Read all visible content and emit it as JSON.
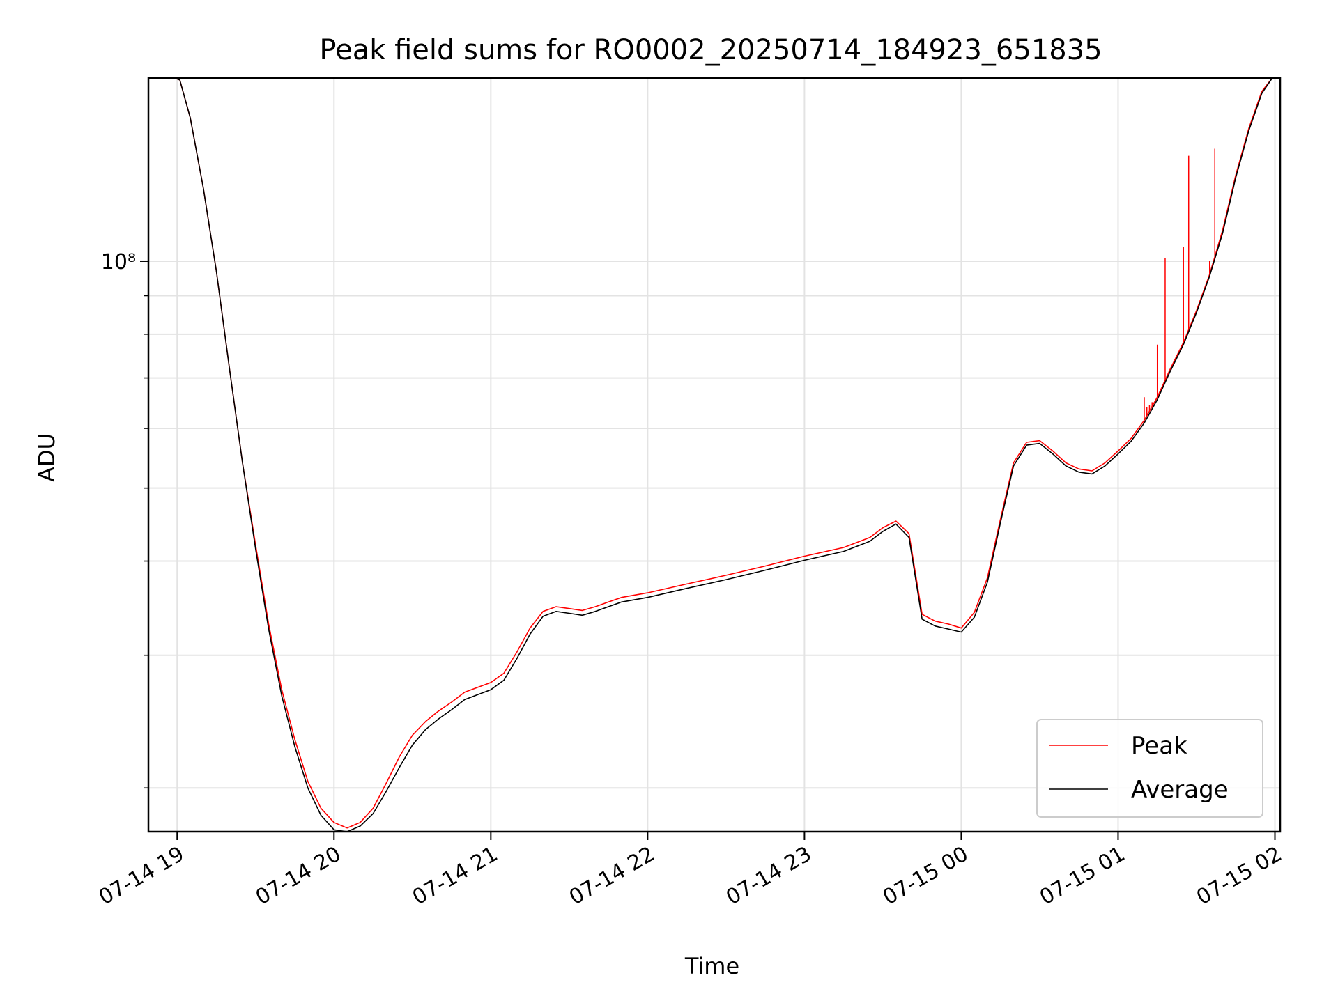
{
  "chart_data": {
    "type": "line",
    "title": "Peak field sums for RO0002_20250714_184923_651835",
    "xlabel": "Time",
    "ylabel": "ADU",
    "yscale": "log",
    "ylim": [
      17500000,
      175000000
    ],
    "xlim": [
      "2025-07-14 18:49",
      "2025-07-15 02:02"
    ],
    "x_ticks": [
      {
        "t": "2025-07-14 19:00",
        "label": "07-14 19"
      },
      {
        "t": "2025-07-14 20:00",
        "label": "07-14 20"
      },
      {
        "t": "2025-07-14 21:00",
        "label": "07-14 21"
      },
      {
        "t": "2025-07-14 22:00",
        "label": "07-14 22"
      },
      {
        "t": "2025-07-14 23:00",
        "label": "07-14 23"
      },
      {
        "t": "2025-07-15 00:00",
        "label": "07-15 00"
      },
      {
        "t": "2025-07-15 01:00",
        "label": "07-15 01"
      },
      {
        "t": "2025-07-15 02:00",
        "label": "07-15 02"
      }
    ],
    "y_ticks": [
      {
        "value": 100000000,
        "label": "10⁸"
      }
    ],
    "y_minor_ticks": [
      20000000,
      30000000,
      40000000,
      50000000,
      60000000,
      70000000,
      80000000,
      90000000,
      200000000
    ],
    "grid": true,
    "legend_position": "lower-right",
    "series": [
      {
        "name": "Peak",
        "color": "#ff0000",
        "x": [
          "2025-07-14 18:59",
          "2025-07-14 19:01",
          "2025-07-14 19:05",
          "2025-07-14 19:10",
          "2025-07-14 19:15",
          "2025-07-14 19:20",
          "2025-07-14 19:25",
          "2025-07-14 19:30",
          "2025-07-14 19:35",
          "2025-07-14 19:40",
          "2025-07-14 19:45",
          "2025-07-14 19:50",
          "2025-07-14 19:55",
          "2025-07-14 20:00",
          "2025-07-14 20:05",
          "2025-07-14 20:10",
          "2025-07-14 20:15",
          "2025-07-14 20:20",
          "2025-07-14 20:25",
          "2025-07-14 20:30",
          "2025-07-14 20:35",
          "2025-07-14 20:40",
          "2025-07-14 20:45",
          "2025-07-14 20:50",
          "2025-07-14 20:55",
          "2025-07-14 21:00",
          "2025-07-14 21:05",
          "2025-07-14 21:10",
          "2025-07-14 21:15",
          "2025-07-14 21:20",
          "2025-07-14 21:25",
          "2025-07-14 21:30",
          "2025-07-14 21:35",
          "2025-07-14 21:40",
          "2025-07-14 21:45",
          "2025-07-14 21:50",
          "2025-07-14 22:00",
          "2025-07-14 22:15",
          "2025-07-14 22:30",
          "2025-07-14 22:45",
          "2025-07-14 23:00",
          "2025-07-14 23:15",
          "2025-07-14 23:25",
          "2025-07-14 23:30",
          "2025-07-14 23:35",
          "2025-07-14 23:40",
          "2025-07-14 23:45",
          "2025-07-14 23:50",
          "2025-07-14 23:55",
          "2025-07-15 00:00",
          "2025-07-15 00:05",
          "2025-07-15 00:10",
          "2025-07-15 00:15",
          "2025-07-15 00:20",
          "2025-07-15 00:25",
          "2025-07-15 00:30",
          "2025-07-15 00:35",
          "2025-07-15 00:40",
          "2025-07-15 00:45",
          "2025-07-15 00:50",
          "2025-07-15 00:55",
          "2025-07-15 01:00",
          "2025-07-15 01:05",
          "2025-07-15 01:10",
          "2025-07-15 01:15",
          "2025-07-15 01:20",
          "2025-07-15 01:25",
          "2025-07-15 01:30",
          "2025-07-15 01:35",
          "2025-07-15 01:40",
          "2025-07-15 01:45",
          "2025-07-15 01:50",
          "2025-07-15 01:55",
          "2025-07-15 01:59"
        ],
        "y": [
          175000000,
          174000000,
          155000000,
          125000000,
          97000000,
          72000000,
          54000000,
          42000000,
          33000000,
          27000000,
          23200000,
          20400000,
          18800000,
          18000000,
          17700000,
          18000000,
          18800000,
          20300000,
          22000000,
          23500000,
          24500000,
          25300000,
          26000000,
          26800000,
          27200000,
          27600000,
          28400000,
          30300000,
          32600000,
          34300000,
          34800000,
          34600000,
          34400000,
          34800000,
          35300000,
          35800000,
          36300000,
          37300000,
          38300000,
          39400000,
          40600000,
          41700000,
          43000000,
          44300000,
          45200000,
          43500000,
          34000000,
          33300000,
          33000000,
          32600000,
          34200000,
          38000000,
          45500000,
          54000000,
          57500000,
          57800000,
          56000000,
          54000000,
          53000000,
          52700000,
          54000000,
          56000000,
          58200000,
          61500000,
          66000000,
          72000000,
          78000000,
          86000000,
          96000000,
          110000000,
          130000000,
          150000000,
          168000000,
          175000000
        ]
      },
      {
        "name": "Average",
        "color": "#000000",
        "x": [
          "2025-07-14 18:59",
          "2025-07-14 19:01",
          "2025-07-14 19:05",
          "2025-07-14 19:10",
          "2025-07-14 19:15",
          "2025-07-14 19:20",
          "2025-07-14 19:25",
          "2025-07-14 19:30",
          "2025-07-14 19:35",
          "2025-07-14 19:40",
          "2025-07-14 19:45",
          "2025-07-14 19:50",
          "2025-07-14 19:55",
          "2025-07-14 20:00",
          "2025-07-14 20:05",
          "2025-07-14 20:10",
          "2025-07-14 20:15",
          "2025-07-14 20:20",
          "2025-07-14 20:25",
          "2025-07-14 20:30",
          "2025-07-14 20:35",
          "2025-07-14 20:40",
          "2025-07-14 20:45",
          "2025-07-14 20:50",
          "2025-07-14 20:55",
          "2025-07-14 21:00",
          "2025-07-14 21:05",
          "2025-07-14 21:10",
          "2025-07-14 21:15",
          "2025-07-14 21:20",
          "2025-07-14 21:25",
          "2025-07-14 21:30",
          "2025-07-14 21:35",
          "2025-07-14 21:40",
          "2025-07-14 21:45",
          "2025-07-14 21:50",
          "2025-07-14 22:00",
          "2025-07-14 22:15",
          "2025-07-14 22:30",
          "2025-07-14 22:45",
          "2025-07-14 23:00",
          "2025-07-14 23:15",
          "2025-07-14 23:25",
          "2025-07-14 23:30",
          "2025-07-14 23:35",
          "2025-07-14 23:40",
          "2025-07-14 23:45",
          "2025-07-14 23:50",
          "2025-07-14 23:55",
          "2025-07-15 00:00",
          "2025-07-15 00:05",
          "2025-07-15 00:10",
          "2025-07-15 00:15",
          "2025-07-15 00:20",
          "2025-07-15 00:25",
          "2025-07-15 00:30",
          "2025-07-15 00:35",
          "2025-07-15 00:40",
          "2025-07-15 00:45",
          "2025-07-15 00:50",
          "2025-07-15 00:55",
          "2025-07-15 01:00",
          "2025-07-15 01:05",
          "2025-07-15 01:10",
          "2025-07-15 01:15",
          "2025-07-15 01:20",
          "2025-07-15 01:25",
          "2025-07-15 01:30",
          "2025-07-15 01:35",
          "2025-07-15 01:40",
          "2025-07-15 01:45",
          "2025-07-15 01:50",
          "2025-07-15 01:55",
          "2025-07-15 01:59"
        ],
        "y": [
          175000000,
          174000000,
          155000000,
          125000000,
          97000000,
          72000000,
          54000000,
          41500000,
          32500000,
          26500000,
          22700000,
          20000000,
          18400000,
          17600000,
          17500000,
          17800000,
          18500000,
          19800000,
          21300000,
          22800000,
          23900000,
          24700000,
          25400000,
          26200000,
          26600000,
          27000000,
          27800000,
          29700000,
          32000000,
          33800000,
          34300000,
          34100000,
          33900000,
          34300000,
          34800000,
          35300000,
          35800000,
          36800000,
          37800000,
          38900000,
          40100000,
          41200000,
          42500000,
          43800000,
          44800000,
          43000000,
          33500000,
          32800000,
          32500000,
          32200000,
          33700000,
          37500000,
          45000000,
          53500000,
          57000000,
          57300000,
          55500000,
          53500000,
          52500000,
          52200000,
          53500000,
          55500000,
          57700000,
          61000000,
          65500000,
          71500000,
          77500000,
          85500000,
          95500000,
          109000000,
          129000000,
          149000000,
          167000000,
          175000000
        ]
      }
    ],
    "spikes": [
      {
        "t": "2025-07-15 01:10",
        "y": 66000000
      },
      {
        "t": "2025-07-15 01:11",
        "y": 64000000
      },
      {
        "t": "2025-07-15 01:12",
        "y": 64500000
      },
      {
        "t": "2025-07-15 01:13",
        "y": 65000000
      },
      {
        "t": "2025-07-15 01:15",
        "y": 77500000
      },
      {
        "t": "2025-07-15 01:18",
        "y": 101000000
      },
      {
        "t": "2025-07-15 01:25",
        "y": 104500000
      },
      {
        "t": "2025-07-15 01:27",
        "y": 138000000
      },
      {
        "t": "2025-07-15 01:35",
        "y": 100000000
      },
      {
        "t": "2025-07-15 01:37",
        "y": 141000000
      }
    ]
  }
}
